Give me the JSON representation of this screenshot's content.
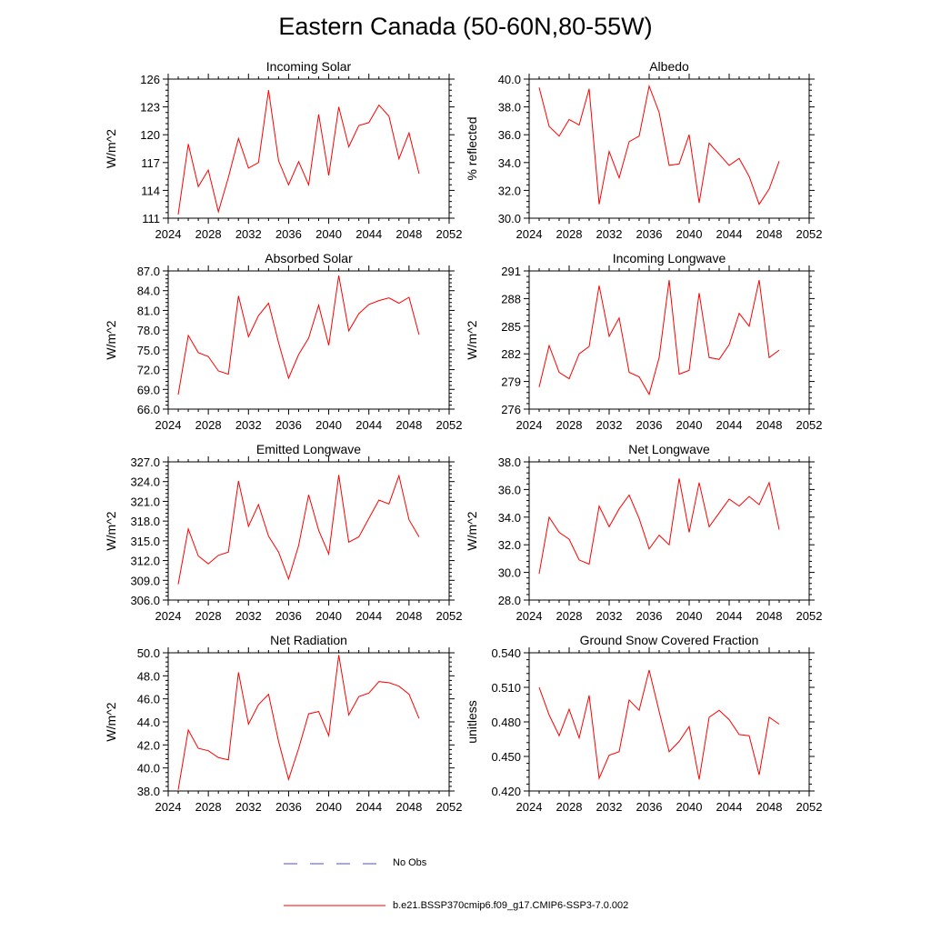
{
  "title": "Eastern Canada (50-60N,80-55W)",
  "legend": [
    {
      "label": "No Obs",
      "color": "#4b4bd6",
      "style": "dashed"
    },
    {
      "label": "b.e21.BSSP370cmip6.f09_g17.CMIP6-SSP3-7.0.002",
      "color": "#ff0000",
      "style": "solid"
    }
  ],
  "chart_data": [
    {
      "type": "line",
      "title": "Incoming Solar",
      "ylabel": "W/m^2",
      "xlim": [
        2024,
        2052
      ],
      "ylim": [
        111,
        126
      ],
      "xticks": [
        2024,
        2028,
        2032,
        2036,
        2040,
        2044,
        2048,
        2052
      ],
      "yticks": [
        111,
        114,
        117,
        120,
        123,
        126
      ],
      "ydecimals": 0,
      "x": [
        2025,
        2026,
        2027,
        2028,
        2029,
        2030,
        2031,
        2032,
        2033,
        2034,
        2035,
        2036,
        2037,
        2038,
        2039,
        2040,
        2041,
        2042,
        2043,
        2044,
        2045,
        2046,
        2047,
        2048,
        2049
      ],
      "series": [
        {
          "color": "#ff0000",
          "values": [
            111.4,
            119.0,
            114.4,
            116.2,
            111.7,
            115.4,
            119.6,
            116.4,
            117.0,
            124.8,
            117.2,
            114.6,
            117.1,
            114.6,
            122.2,
            115.6,
            123.0,
            118.7,
            121.0,
            121.3,
            123.2,
            122.0,
            117.4,
            120.2,
            115.8
          ]
        }
      ]
    },
    {
      "type": "line",
      "title": "Albedo",
      "ylabel": "% reflected",
      "xlim": [
        2024,
        2052
      ],
      "ylim": [
        30,
        40
      ],
      "xticks": [
        2024,
        2028,
        2032,
        2036,
        2040,
        2044,
        2048,
        2052
      ],
      "yticks": [
        30,
        32,
        34,
        36,
        38,
        40
      ],
      "ydecimals": 1,
      "x": [
        2025,
        2026,
        2027,
        2028,
        2029,
        2030,
        2031,
        2032,
        2033,
        2034,
        2035,
        2036,
        2037,
        2038,
        2039,
        2040,
        2041,
        2042,
        2043,
        2044,
        2045,
        2046,
        2047,
        2048,
        2049
      ],
      "series": [
        {
          "color": "#ff0000",
          "values": [
            39.4,
            36.6,
            35.9,
            37.1,
            36.7,
            39.3,
            31.0,
            34.8,
            32.9,
            35.5,
            35.9,
            39.5,
            37.6,
            33.8,
            33.9,
            36.0,
            31.1,
            35.4,
            34.6,
            33.8,
            34.3,
            33.0,
            31.0,
            32.1,
            34.1
          ]
        }
      ]
    },
    {
      "type": "line",
      "title": "Absorbed Solar",
      "ylabel": "W/m^2",
      "xlim": [
        2024,
        2052
      ],
      "ylim": [
        66,
        87
      ],
      "xticks": [
        2024,
        2028,
        2032,
        2036,
        2040,
        2044,
        2048,
        2052
      ],
      "yticks": [
        66,
        69,
        72,
        75,
        78,
        81,
        84,
        87
      ],
      "ydecimals": 1,
      "x": [
        2025,
        2026,
        2027,
        2028,
        2029,
        2030,
        2031,
        2032,
        2033,
        2034,
        2035,
        2036,
        2037,
        2038,
        2039,
        2040,
        2041,
        2042,
        2043,
        2044,
        2045,
        2046,
        2047,
        2048,
        2049
      ],
      "series": [
        {
          "color": "#ff0000",
          "values": [
            68.2,
            77.2,
            74.6,
            74.0,
            71.8,
            71.3,
            83.2,
            77.0,
            80.2,
            82.1,
            76.1,
            70.7,
            74.3,
            76.8,
            81.8,
            75.7,
            86.3,
            77.9,
            80.5,
            81.9,
            82.5,
            82.9,
            82.1,
            83.0,
            77.3
          ]
        }
      ]
    },
    {
      "type": "line",
      "title": "Incoming Longwave",
      "ylabel": "W/m^2",
      "xlim": [
        2024,
        2052
      ],
      "ylim": [
        276,
        291
      ],
      "xticks": [
        2024,
        2028,
        2032,
        2036,
        2040,
        2044,
        2048,
        2052
      ],
      "yticks": [
        276,
        279,
        282,
        285,
        288,
        291
      ],
      "ydecimals": 0,
      "x": [
        2025,
        2026,
        2027,
        2028,
        2029,
        2030,
        2031,
        2032,
        2033,
        2034,
        2035,
        2036,
        2037,
        2038,
        2039,
        2040,
        2041,
        2042,
        2043,
        2044,
        2045,
        2046,
        2047,
        2048,
        2049
      ],
      "series": [
        {
          "color": "#ff0000",
          "values": [
            278.4,
            282.9,
            280.0,
            279.3,
            282.0,
            282.8,
            289.4,
            283.9,
            285.9,
            280.0,
            279.5,
            277.6,
            281.6,
            290.0,
            279.8,
            280.2,
            288.6,
            281.6,
            281.4,
            283.0,
            286.4,
            285.0,
            290.0,
            281.6,
            282.4
          ]
        }
      ]
    },
    {
      "type": "line",
      "title": "Emitted Longwave",
      "ylabel": "W/m^2",
      "xlim": [
        2024,
        2052
      ],
      "ylim": [
        306,
        327
      ],
      "xticks": [
        2024,
        2028,
        2032,
        2036,
        2040,
        2044,
        2048,
        2052
      ],
      "yticks": [
        306,
        309,
        312,
        315,
        318,
        321,
        324,
        327
      ],
      "ydecimals": 1,
      "x": [
        2025,
        2026,
        2027,
        2028,
        2029,
        2030,
        2031,
        2032,
        2033,
        2034,
        2035,
        2036,
        2037,
        2038,
        2039,
        2040,
        2041,
        2042,
        2043,
        2044,
        2045,
        2046,
        2047,
        2048,
        2049
      ],
      "series": [
        {
          "color": "#ff0000",
          "values": [
            308.4,
            316.8,
            312.7,
            311.5,
            312.8,
            313.3,
            324.1,
            317.2,
            320.5,
            315.7,
            313.3,
            309.2,
            314.3,
            322.0,
            316.6,
            313.0,
            325.0,
            314.8,
            315.6,
            318.4,
            321.2,
            320.6,
            324.9,
            318.2,
            315.6
          ]
        }
      ]
    },
    {
      "type": "line",
      "title": "Net Longwave",
      "ylabel": "W/m^2",
      "xlim": [
        2024,
        2052
      ],
      "ylim": [
        28,
        38
      ],
      "xticks": [
        2024,
        2028,
        2032,
        2036,
        2040,
        2044,
        2048,
        2052
      ],
      "yticks": [
        28,
        30,
        32,
        34,
        36,
        38
      ],
      "ydecimals": 1,
      "x": [
        2025,
        2026,
        2027,
        2028,
        2029,
        2030,
        2031,
        2032,
        2033,
        2034,
        2035,
        2036,
        2037,
        2038,
        2039,
        2040,
        2041,
        2042,
        2043,
        2044,
        2045,
        2046,
        2047,
        2048,
        2049
      ],
      "series": [
        {
          "color": "#ff0000",
          "values": [
            29.9,
            34.0,
            32.9,
            32.4,
            30.9,
            30.6,
            34.8,
            33.3,
            34.6,
            35.6,
            33.9,
            31.7,
            32.7,
            32.0,
            36.8,
            32.9,
            36.5,
            33.3,
            34.3,
            35.3,
            34.8,
            35.5,
            34.9,
            36.5,
            33.1
          ]
        }
      ]
    },
    {
      "type": "line",
      "title": "Net Radiation",
      "ylabel": "W/m^2",
      "xlim": [
        2024,
        2052
      ],
      "ylim": [
        38,
        50
      ],
      "xticks": [
        2024,
        2028,
        2032,
        2036,
        2040,
        2044,
        2048,
        2052
      ],
      "yticks": [
        38,
        40,
        42,
        44,
        46,
        48,
        50
      ],
      "ydecimals": 1,
      "x": [
        2025,
        2026,
        2027,
        2028,
        2029,
        2030,
        2031,
        2032,
        2033,
        2034,
        2035,
        2036,
        2037,
        2038,
        2039,
        2040,
        2041,
        2042,
        2043,
        2044,
        2045,
        2046,
        2047,
        2048,
        2049
      ],
      "series": [
        {
          "color": "#ff0000",
          "values": [
            38.1,
            43.3,
            41.7,
            41.5,
            40.9,
            40.7,
            48.3,
            43.8,
            45.5,
            46.4,
            42.3,
            39.0,
            41.7,
            44.7,
            44.9,
            42.8,
            49.8,
            44.6,
            46.2,
            46.5,
            47.5,
            47.4,
            47.1,
            46.4,
            44.3
          ]
        }
      ]
    },
    {
      "type": "line",
      "title": "Ground Snow Covered Fraction",
      "ylabel": "unitless",
      "xlim": [
        2024,
        2052
      ],
      "ylim": [
        0.42,
        0.54
      ],
      "xticks": [
        2024,
        2028,
        2032,
        2036,
        2040,
        2044,
        2048,
        2052
      ],
      "yticks": [
        0.42,
        0.45,
        0.48,
        0.51,
        0.54
      ],
      "ydecimals": 3,
      "x": [
        2025,
        2026,
        2027,
        2028,
        2029,
        2030,
        2031,
        2032,
        2033,
        2034,
        2035,
        2036,
        2037,
        2038,
        2039,
        2040,
        2041,
        2042,
        2043,
        2044,
        2045,
        2046,
        2047,
        2048,
        2049
      ],
      "series": [
        {
          "color": "#ff0000",
          "values": [
            0.51,
            0.486,
            0.468,
            0.491,
            0.466,
            0.503,
            0.431,
            0.451,
            0.454,
            0.499,
            0.49,
            0.525,
            0.489,
            0.454,
            0.463,
            0.476,
            0.43,
            0.484,
            0.49,
            0.482,
            0.469,
            0.468,
            0.434,
            0.484,
            0.478
          ]
        }
      ]
    }
  ]
}
